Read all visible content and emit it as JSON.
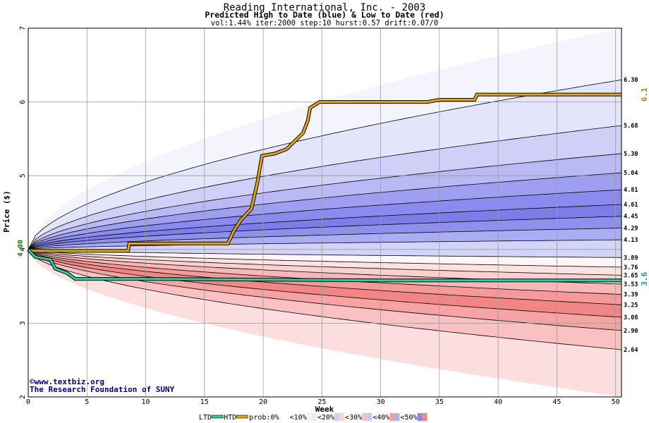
{
  "chart_data": {
    "type": "area",
    "title": "Reading International, Inc. - 2003",
    "subtitle": "Predicted High to Date (blue) &  Low to Date (red)",
    "params": "vol:1.44% iter:2000 step:10 hurst:0.57 drift:0.07/0",
    "xlabel": "Week",
    "ylabel": "Price ($)",
    "xlim": [
      0,
      50.5
    ],
    "ylim": [
      2,
      7
    ],
    "x_ticks": [
      "0",
      "5",
      "10",
      "15",
      "20",
      "25",
      "30",
      "35",
      "40",
      "45",
      "50"
    ],
    "y_ticks": [
      "2",
      "3",
      "4",
      "5",
      "6",
      "7"
    ],
    "grid": true,
    "start_price": 4.0,
    "start_label": "4.00",
    "quantile_curves_right_end": [
      7.0,
      6.3,
      5.68,
      5.3,
      5.04,
      4.81,
      4.61,
      4.45,
      4.29,
      4.13,
      3.89,
      3.76,
      3.65,
      3.53,
      3.39,
      3.25,
      3.08,
      2.9,
      2.64,
      2.0
    ],
    "right_labels": [
      "6.30",
      "5.68",
      "5.30",
      "5.04",
      "4.81",
      "4.61",
      "4.45",
      "4.29",
      "4.13",
      "3.89",
      "3.76",
      "3.65",
      "3.53",
      "3.39",
      "3.25",
      "3.08",
      "2.90",
      "2.64"
    ],
    "band_colors": [
      "#f4f4fd",
      "#e4e4fb",
      "#cfcff8",
      "#b9b9f5",
      "#9f9ff2",
      "#8a8aef",
      "#7d7de8",
      "#8f8fee",
      "#abadf3",
      "#d2d4fa",
      "#fef5f5",
      "#fde2e2",
      "#fcd0d0",
      "#f9b7b7",
      "#f59999",
      "#f28585",
      "#f6a3a3",
      "#f9c1c1",
      "#fcdede"
    ],
    "series": [
      {
        "name": "HTD",
        "color": "#e6a800",
        "final_label": "6.1",
        "points": [
          [
            0,
            4.0
          ],
          [
            0.5,
            3.98
          ],
          [
            1,
            3.98
          ],
          [
            2,
            3.98
          ],
          [
            5,
            3.98
          ],
          [
            8.5,
            3.98
          ],
          [
            8.6,
            4.08
          ],
          [
            17,
            4.08
          ],
          [
            17.5,
            4.25
          ],
          [
            18.1,
            4.4
          ],
          [
            19,
            4.55
          ],
          [
            19.5,
            4.9
          ],
          [
            19.9,
            5.27
          ],
          [
            21,
            5.3
          ],
          [
            22,
            5.36
          ],
          [
            23.4,
            5.58
          ],
          [
            23.8,
            5.75
          ],
          [
            24,
            5.92
          ],
          [
            24.8,
            6.0
          ],
          [
            30,
            6.0
          ],
          [
            34,
            6.0
          ],
          [
            35,
            6.03
          ],
          [
            38,
            6.03
          ],
          [
            38.2,
            6.1
          ],
          [
            50.5,
            6.1
          ]
        ]
      },
      {
        "name": "LTD",
        "color": "#2ad0a0",
        "final_label": "3.6",
        "points": [
          [
            0,
            4.0
          ],
          [
            0.6,
            3.9
          ],
          [
            1.9,
            3.86
          ],
          [
            2.3,
            3.74
          ],
          [
            3.3,
            3.68
          ],
          [
            4,
            3.6
          ],
          [
            10,
            3.6
          ],
          [
            20,
            3.59
          ],
          [
            30,
            3.58
          ],
          [
            40,
            3.58
          ],
          [
            50.5,
            3.58
          ]
        ]
      }
    ],
    "legend": {
      "ltd": "LTD",
      "htd": "HTD",
      "prob_prefix": "prob:",
      "items": [
        "0%",
        "<10%",
        "<20%",
        "<30%",
        "<40%",
        "<50%"
      ],
      "swatch_colors": [
        "#ffffff",
        "#f4f4fd",
        "#d0d0f8",
        "#f9bebe",
        "#f59e9e",
        "#8787ee"
      ],
      "swatch_pinks": [
        "#ffffff",
        "#fde8e8",
        "#fcd4d4",
        "#c9c9f6",
        "#b0b0f3",
        "#f28787"
      ],
      "position": "bottom"
    },
    "watermark": [
      "©www.textbiz.org",
      "The Research Foundation of SUNY"
    ]
  }
}
